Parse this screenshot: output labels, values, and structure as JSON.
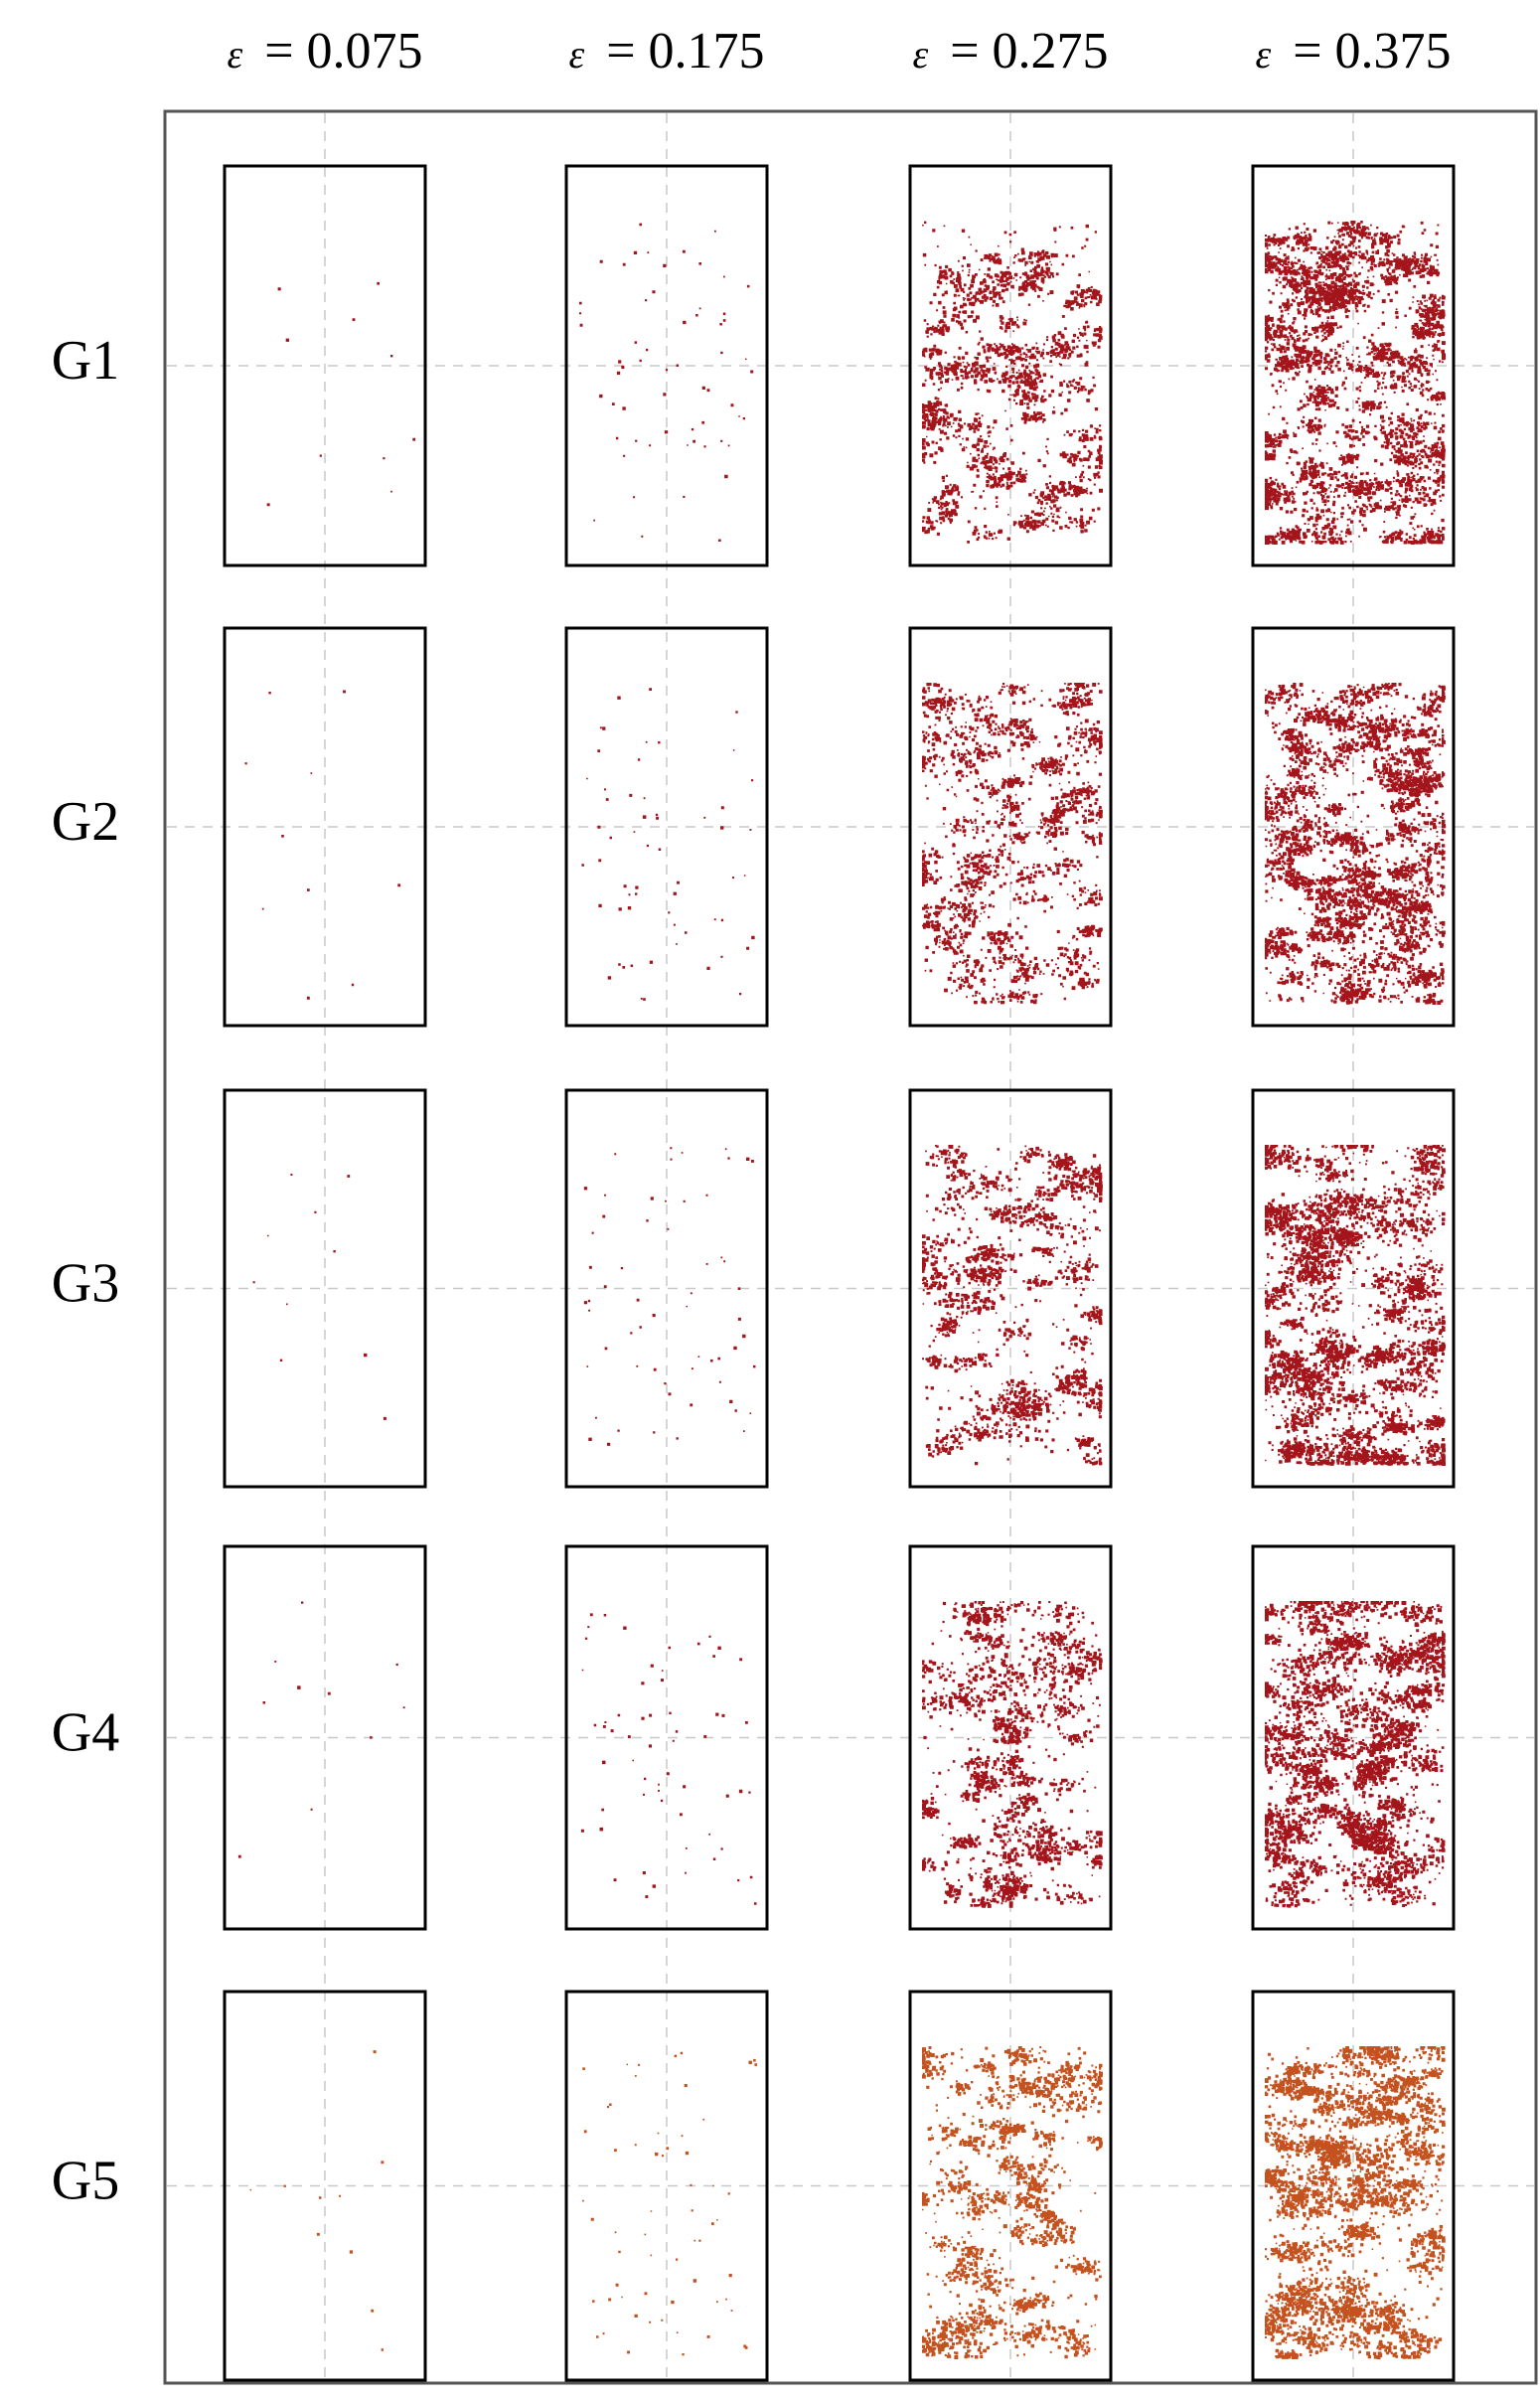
{
  "columns": [
    {
      "symbol": "ε",
      "label": "= 0.075"
    },
    {
      "symbol": "ε",
      "label": "= 0.175"
    },
    {
      "symbol": "ε",
      "label": "= 0.275"
    },
    {
      "symbol": "ε",
      "label": "= 0.375"
    }
  ],
  "rows": [
    "G1",
    "G2",
    "G3",
    "G4",
    "G5"
  ]
}
